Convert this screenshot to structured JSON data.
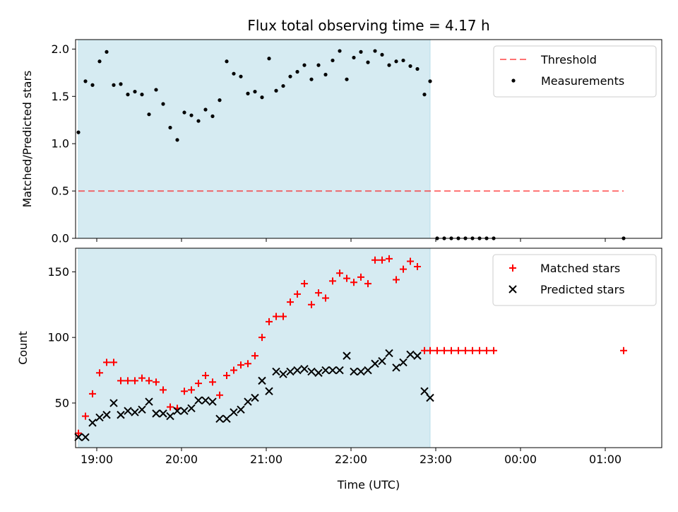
{
  "figure": {
    "title": "Flux total observing time = 4.17 h"
  },
  "chart_data": [
    {
      "type": "scatter",
      "panel": "top",
      "ylabel": "Matched/Predicted stars",
      "xlabel": "",
      "xlim": [
        "18:45",
        "01:40"
      ],
      "ylim": [
        0,
        2.1
      ],
      "yticks": [
        "0.0",
        "0.5",
        "1.0",
        "1.5",
        "2.0"
      ],
      "shaded_interval": [
        "18:47",
        "22:56"
      ],
      "shade_color": "#add8e6",
      "legend_position": "upper right",
      "threshold": {
        "name": "Threshold",
        "value": 0.5,
        "x_range": [
          "18:47",
          "01:13"
        ],
        "color": "#ff0000",
        "style": "dashed"
      },
      "series": [
        {
          "name": "Measurements",
          "color": "#000000",
          "marker": "dot",
          "x": [
            "18:47",
            "18:52",
            "18:57",
            "19:02",
            "19:07",
            "19:12",
            "19:17",
            "19:22",
            "19:27",
            "19:32",
            "19:37",
            "19:42",
            "19:47",
            "19:52",
            "19:57",
            "20:02",
            "20:07",
            "20:12",
            "20:17",
            "20:22",
            "20:27",
            "20:32",
            "20:37",
            "20:42",
            "20:47",
            "20:52",
            "20:57",
            "21:02",
            "21:07",
            "21:12",
            "21:17",
            "21:22",
            "21:27",
            "21:32",
            "21:37",
            "21:42",
            "21:47",
            "21:52",
            "21:57",
            "22:02",
            "22:07",
            "22:12",
            "22:17",
            "22:22",
            "22:27",
            "22:32",
            "22:37",
            "22:42",
            "22:47",
            "22:52",
            "22:56",
            "23:01",
            "23:06",
            "23:11",
            "23:16",
            "23:21",
            "23:26",
            "23:31",
            "23:36",
            "23:41",
            "01:13"
          ],
          "y": [
            1.12,
            1.66,
            1.62,
            1.87,
            1.97,
            1.62,
            1.63,
            1.52,
            1.55,
            1.52,
            1.31,
            1.57,
            1.42,
            1.17,
            1.04,
            1.33,
            1.3,
            1.24,
            1.36,
            1.29,
            1.46,
            1.87,
            1.74,
            1.71,
            1.53,
            1.55,
            1.49,
            1.9,
            1.56,
            1.61,
            1.71,
            1.76,
            1.83,
            1.68,
            1.83,
            1.73,
            1.88,
            1.98,
            1.68,
            1.91,
            1.97,
            1.86,
            1.98,
            1.94,
            1.83,
            1.87,
            1.88,
            1.82,
            1.79,
            1.52,
            1.66,
            0,
            0,
            0,
            0,
            0,
            0,
            0,
            0,
            0,
            0
          ]
        }
      ]
    },
    {
      "type": "scatter",
      "panel": "bottom",
      "xlabel": "Time (UTC)",
      "ylabel": "Count",
      "xlim": [
        "18:45",
        "01:40"
      ],
      "ylim": [
        16,
        168
      ],
      "yticks": [
        "50",
        "100",
        "150"
      ],
      "xticks": [
        "19:00",
        "20:00",
        "21:00",
        "22:00",
        "23:00",
        "00:00",
        "01:00"
      ],
      "shaded_interval": [
        "18:47",
        "22:56"
      ],
      "shade_color": "#add8e6",
      "legend_position": "upper right",
      "series": [
        {
          "name": "Matched stars",
          "color": "#ff0000",
          "marker": "plus",
          "x": [
            "18:47",
            "18:52",
            "18:57",
            "19:02",
            "19:07",
            "19:12",
            "19:17",
            "19:22",
            "19:27",
            "19:32",
            "19:37",
            "19:42",
            "19:47",
            "19:52",
            "19:57",
            "20:02",
            "20:07",
            "20:12",
            "20:17",
            "20:22",
            "20:27",
            "20:32",
            "20:37",
            "20:42",
            "20:47",
            "20:52",
            "20:57",
            "21:02",
            "21:07",
            "21:12",
            "21:17",
            "21:22",
            "21:27",
            "21:32",
            "21:37",
            "21:42",
            "21:47",
            "21:52",
            "21:57",
            "22:02",
            "22:07",
            "22:12",
            "22:17",
            "22:22",
            "22:27",
            "22:32",
            "22:37",
            "22:42",
            "22:47",
            "22:52",
            "22:56",
            "23:01",
            "23:06",
            "23:11",
            "23:16",
            "23:21",
            "23:26",
            "23:31",
            "23:36",
            "23:41",
            "01:13"
          ],
          "y": [
            27,
            40,
            57,
            73,
            81,
            81,
            67,
            67,
            67,
            69,
            67,
            66,
            60,
            47,
            46,
            59,
            60,
            65,
            71,
            66,
            56,
            71,
            75,
            79,
            80,
            86,
            100,
            112,
            116,
            116,
            127,
            133,
            141,
            125,
            134,
            130,
            143,
            149,
            145,
            142,
            146,
            141,
            159,
            159,
            160,
            144,
            152,
            158,
            154,
            90,
            90,
            90,
            90,
            90,
            90,
            90,
            90,
            90,
            90,
            90,
            90
          ]
        },
        {
          "name": "Predicted stars",
          "color": "#000000",
          "marker": "x",
          "x": [
            "18:47",
            "18:52",
            "18:57",
            "19:02",
            "19:07",
            "19:12",
            "19:17",
            "19:22",
            "19:27",
            "19:32",
            "19:37",
            "19:42",
            "19:47",
            "19:52",
            "19:57",
            "20:02",
            "20:07",
            "20:12",
            "20:17",
            "20:22",
            "20:27",
            "20:32",
            "20:37",
            "20:42",
            "20:47",
            "20:52",
            "20:57",
            "21:02",
            "21:07",
            "21:12",
            "21:17",
            "21:22",
            "21:27",
            "21:32",
            "21:37",
            "21:42",
            "21:47",
            "21:52",
            "21:57",
            "22:02",
            "22:07",
            "22:12",
            "22:17",
            "22:22",
            "22:27",
            "22:32",
            "22:37",
            "22:42",
            "22:47",
            "22:52",
            "22:56"
          ],
          "y": [
            24,
            24,
            35,
            39,
            41,
            50,
            41,
            44,
            43,
            45,
            51,
            42,
            42,
            40,
            44,
            44,
            46,
            52,
            52,
            51,
            38,
            38,
            43,
            45,
            51,
            54,
            67,
            59,
            74,
            72,
            74,
            75,
            76,
            74,
            73,
            75,
            75,
            75,
            86,
            74,
            74,
            75,
            80,
            82,
            88,
            77,
            81,
            87,
            86,
            59,
            54
          ]
        }
      ]
    }
  ]
}
